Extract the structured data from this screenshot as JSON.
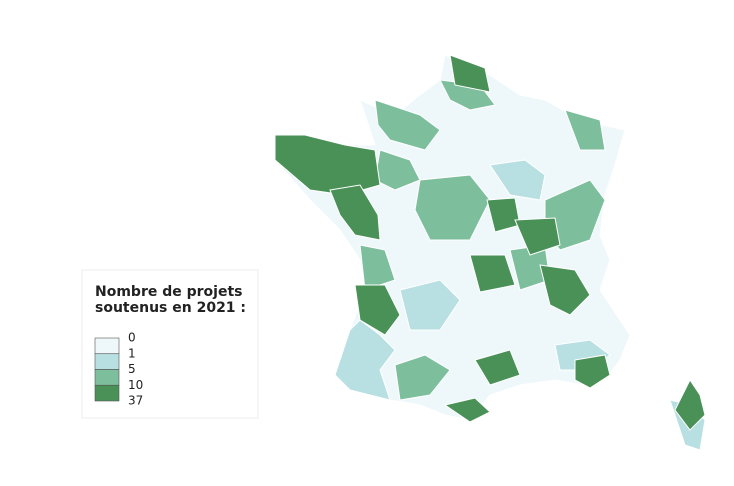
{
  "legend": {
    "title_lines": [
      "Nombre de projets",
      "soutenus en 2021 :"
    ],
    "breaks": [
      0,
      1,
      5,
      10,
      37
    ],
    "colors": [
      "#eef8fa",
      "#b8dfe2",
      "#7dbf9c",
      "#4a9157"
    ]
  }
}
